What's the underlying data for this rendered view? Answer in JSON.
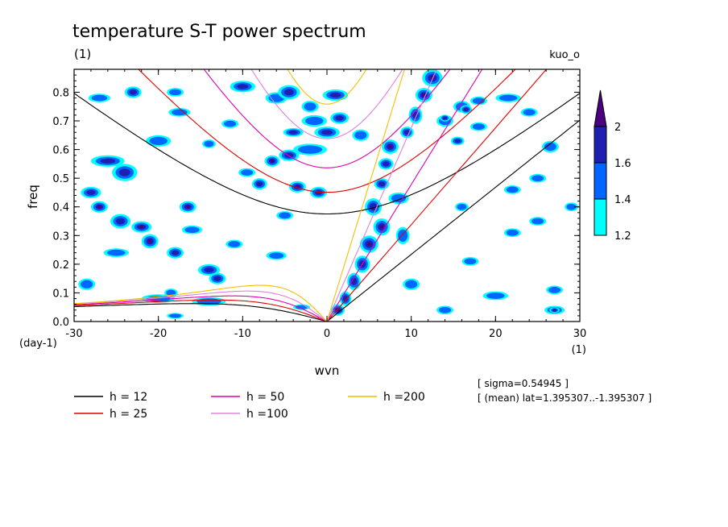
{
  "chart_data": {
    "type": "heatmap",
    "title": "temperature S-T power spectrum",
    "subtitle": "(1)",
    "top_right_label": "kuo_o",
    "xlabel": "wvn",
    "ylabel": "freq",
    "x_unit_label": "(1)",
    "y_unit_label": "(day-1)",
    "xlim": [
      -30,
      30
    ],
    "ylim": [
      0,
      0.88
    ],
    "x_ticks": [
      -30,
      -20,
      -10,
      0,
      10,
      20,
      30
    ],
    "x_tick_labels": [
      "-30",
      "-20",
      "-10",
      "0",
      "10",
      "20",
      "30"
    ],
    "y_ticks": [
      0,
      0.1,
      0.2,
      0.3,
      0.4,
      0.5,
      0.6,
      0.7,
      0.8
    ],
    "y_tick_labels": [
      "0.0",
      "0.1",
      "0.2",
      "0.3",
      "0.4",
      "0.5",
      "0.6",
      "0.7",
      "0.8"
    ],
    "colorbar": {
      "levels": [
        1.2,
        1.4,
        1.6,
        2
      ],
      "labels": [
        "1.2",
        "1.4",
        "1.6",
        "2"
      ],
      "colors": [
        "#00ffff",
        "#0066ff",
        "#2020b0",
        "#4b0082"
      ]
    },
    "dispersion_curves": [
      {
        "label": "h = 12",
        "h": 12,
        "color": "#000000"
      },
      {
        "label": "h = 25",
        "h": 25,
        "color": "#e00000"
      },
      {
        "label": "h = 50",
        "h": 50,
        "color": "#e000b0"
      },
      {
        "label": "h =100",
        "h": 100,
        "color": "#e080e0"
      },
      {
        "label": "h =200",
        "h": 200,
        "color": "#f0c000"
      }
    ],
    "blobs": [
      {
        "x": 12.5,
        "y": 0.85,
        "level": 3,
        "rx": 1.2,
        "ry": 0.03
      },
      {
        "x": 11.5,
        "y": 0.79,
        "level": 3,
        "rx": 1.0,
        "ry": 0.025
      },
      {
        "x": 10.5,
        "y": 0.72,
        "level": 2,
        "rx": 0.8,
        "ry": 0.03
      },
      {
        "x": 9.5,
        "y": 0.66,
        "level": 2,
        "rx": 0.8,
        "ry": 0.02
      },
      {
        "x": 7.5,
        "y": 0.61,
        "level": 3,
        "rx": 1.0,
        "ry": 0.025
      },
      {
        "x": 7.0,
        "y": 0.55,
        "level": 2,
        "rx": 0.9,
        "ry": 0.02
      },
      {
        "x": 6.5,
        "y": 0.48,
        "level": 2,
        "rx": 0.9,
        "ry": 0.02
      },
      {
        "x": 5.5,
        "y": 0.4,
        "level": 2,
        "rx": 1.0,
        "ry": 0.03
      },
      {
        "x": 6.5,
        "y": 0.33,
        "level": 3,
        "rx": 1.0,
        "ry": 0.03
      },
      {
        "x": 5.0,
        "y": 0.27,
        "level": 3,
        "rx": 1.1,
        "ry": 0.03
      },
      {
        "x": 4.2,
        "y": 0.2,
        "level": 2,
        "rx": 0.9,
        "ry": 0.03
      },
      {
        "x": 3.2,
        "y": 0.14,
        "level": 2,
        "rx": 0.8,
        "ry": 0.03
      },
      {
        "x": 2.2,
        "y": 0.08,
        "level": 2,
        "rx": 0.7,
        "ry": 0.025
      },
      {
        "x": 1.3,
        "y": 0.04,
        "level": 3,
        "rx": 0.8,
        "ry": 0.02
      },
      {
        "x": 8.5,
        "y": 0.43,
        "level": 1,
        "rx": 1.2,
        "ry": 0.02
      },
      {
        "x": 9.0,
        "y": 0.3,
        "level": 1,
        "rx": 0.8,
        "ry": 0.03
      },
      {
        "x": -10.0,
        "y": 0.82,
        "level": 2,
        "rx": 1.5,
        "ry": 0.02
      },
      {
        "x": -6.0,
        "y": 0.78,
        "level": 1,
        "rx": 1.3,
        "ry": 0.02
      },
      {
        "x": -4.5,
        "y": 0.8,
        "level": 2,
        "rx": 1.3,
        "ry": 0.025
      },
      {
        "x": -2.0,
        "y": 0.75,
        "level": 1,
        "rx": 1.0,
        "ry": 0.02
      },
      {
        "x": 1.0,
        "y": 0.79,
        "level": 2,
        "rx": 1.5,
        "ry": 0.02
      },
      {
        "x": 1.5,
        "y": 0.71,
        "level": 2,
        "rx": 1.1,
        "ry": 0.02
      },
      {
        "x": -1.5,
        "y": 0.7,
        "level": 1,
        "rx": 1.5,
        "ry": 0.02
      },
      {
        "x": -4.0,
        "y": 0.66,
        "level": 2,
        "rx": 1.2,
        "ry": 0.015
      },
      {
        "x": 0.0,
        "y": 0.66,
        "level": 2,
        "rx": 1.5,
        "ry": 0.02
      },
      {
        "x": -2.0,
        "y": 0.6,
        "level": 1,
        "rx": 2.0,
        "ry": 0.02
      },
      {
        "x": -4.5,
        "y": 0.58,
        "level": 2,
        "rx": 1.2,
        "ry": 0.02
      },
      {
        "x": -6.5,
        "y": 0.56,
        "level": 3,
        "rx": 0.9,
        "ry": 0.02
      },
      {
        "x": 4.0,
        "y": 0.65,
        "level": 1,
        "rx": 1.0,
        "ry": 0.02
      },
      {
        "x": -26.0,
        "y": 0.56,
        "level": 2,
        "rx": 2.0,
        "ry": 0.02
      },
      {
        "x": -24.0,
        "y": 0.52,
        "level": 2,
        "rx": 1.5,
        "ry": 0.03
      },
      {
        "x": -28.0,
        "y": 0.45,
        "level": 2,
        "rx": 1.2,
        "ry": 0.02
      },
      {
        "x": -27.0,
        "y": 0.4,
        "level": 3,
        "rx": 1.0,
        "ry": 0.02
      },
      {
        "x": -24.5,
        "y": 0.35,
        "level": 2,
        "rx": 1.2,
        "ry": 0.025
      },
      {
        "x": -22.0,
        "y": 0.33,
        "level": 3,
        "rx": 1.2,
        "ry": 0.02
      },
      {
        "x": -21.0,
        "y": 0.28,
        "level": 3,
        "rx": 1.0,
        "ry": 0.025
      },
      {
        "x": -18.0,
        "y": 0.24,
        "level": 2,
        "rx": 1.0,
        "ry": 0.02
      },
      {
        "x": -16.5,
        "y": 0.4,
        "level": 3,
        "rx": 1.0,
        "ry": 0.02
      },
      {
        "x": -14.0,
        "y": 0.18,
        "level": 2,
        "rx": 1.3,
        "ry": 0.02
      },
      {
        "x": -13.0,
        "y": 0.15,
        "level": 2,
        "rx": 1.0,
        "ry": 0.02
      },
      {
        "x": -8.0,
        "y": 0.48,
        "level": 2,
        "rx": 0.9,
        "ry": 0.02
      },
      {
        "x": -3.5,
        "y": 0.47,
        "level": 3,
        "rx": 1.0,
        "ry": 0.02
      },
      {
        "x": -1.0,
        "y": 0.45,
        "level": 2,
        "rx": 1.0,
        "ry": 0.02
      },
      {
        "x": -20.0,
        "y": 0.63,
        "level": 1,
        "rx": 1.5,
        "ry": 0.02
      },
      {
        "x": -17.5,
        "y": 0.73,
        "level": 1,
        "rx": 1.3,
        "ry": 0.015
      },
      {
        "x": -23.0,
        "y": 0.8,
        "level": 2,
        "rx": 1.0,
        "ry": 0.02
      },
      {
        "x": -27.0,
        "y": 0.78,
        "level": 1,
        "rx": 1.3,
        "ry": 0.015
      },
      {
        "x": -18.0,
        "y": 0.8,
        "level": 1,
        "rx": 1.0,
        "ry": 0.015
      },
      {
        "x": -11.5,
        "y": 0.69,
        "level": 1,
        "rx": 1.0,
        "ry": 0.015
      },
      {
        "x": -9.5,
        "y": 0.52,
        "level": 1,
        "rx": 1.0,
        "ry": 0.015
      },
      {
        "x": -14.0,
        "y": 0.62,
        "level": 1,
        "rx": 0.8,
        "ry": 0.015
      },
      {
        "x": -5.0,
        "y": 0.37,
        "level": 1,
        "rx": 1.0,
        "ry": 0.015
      },
      {
        "x": -16.0,
        "y": 0.32,
        "level": 1,
        "rx": 1.2,
        "ry": 0.015
      },
      {
        "x": -11.0,
        "y": 0.27,
        "level": 1,
        "rx": 1.0,
        "ry": 0.015
      },
      {
        "x": -6.0,
        "y": 0.23,
        "level": 1,
        "rx": 1.2,
        "ry": 0.015
      },
      {
        "x": -25.0,
        "y": 0.24,
        "level": 1,
        "rx": 1.5,
        "ry": 0.015
      },
      {
        "x": -28.5,
        "y": 0.13,
        "level": 1,
        "rx": 1.0,
        "ry": 0.02
      },
      {
        "x": -20.0,
        "y": 0.08,
        "level": 1,
        "rx": 2.0,
        "ry": 0.015
      },
      {
        "x": -14.0,
        "y": 0.07,
        "level": 1,
        "rx": 2.0,
        "ry": 0.015
      },
      {
        "x": -18.5,
        "y": 0.1,
        "level": 1,
        "rx": 0.8,
        "ry": 0.015
      },
      {
        "x": -3.0,
        "y": 0.05,
        "level": 1,
        "rx": 1.0,
        "ry": 0.01
      },
      {
        "x": -18.0,
        "y": 0.02,
        "level": 1,
        "rx": 1.0,
        "ry": 0.01
      },
      {
        "x": 14.0,
        "y": 0.7,
        "level": 1,
        "rx": 1.0,
        "ry": 0.02
      },
      {
        "x": 16.0,
        "y": 0.75,
        "level": 1,
        "rx": 1.0,
        "ry": 0.02
      },
      {
        "x": 18.0,
        "y": 0.68,
        "level": 1,
        "rx": 1.0,
        "ry": 0.015
      },
      {
        "x": 18.0,
        "y": 0.77,
        "level": 1,
        "rx": 1.0,
        "ry": 0.015
      },
      {
        "x": 21.5,
        "y": 0.78,
        "level": 1,
        "rx": 1.5,
        "ry": 0.015
      },
      {
        "x": 24.0,
        "y": 0.73,
        "level": 1,
        "rx": 1.0,
        "ry": 0.015
      },
      {
        "x": 26.5,
        "y": 0.61,
        "level": 1,
        "rx": 1.0,
        "ry": 0.02
      },
      {
        "x": 25.0,
        "y": 0.5,
        "level": 1,
        "rx": 1.0,
        "ry": 0.015
      },
      {
        "x": 22.0,
        "y": 0.46,
        "level": 1,
        "rx": 1.0,
        "ry": 0.015
      },
      {
        "x": 25.0,
        "y": 0.35,
        "level": 1,
        "rx": 1.0,
        "ry": 0.015
      },
      {
        "x": 22.0,
        "y": 0.31,
        "level": 1,
        "rx": 1.0,
        "ry": 0.015
      },
      {
        "x": 17.0,
        "y": 0.21,
        "level": 1,
        "rx": 1.0,
        "ry": 0.015
      },
      {
        "x": 20.0,
        "y": 0.09,
        "level": 1,
        "rx": 1.5,
        "ry": 0.015
      },
      {
        "x": 27.0,
        "y": 0.11,
        "level": 1,
        "rx": 1.0,
        "ry": 0.015
      },
      {
        "x": 29.0,
        "y": 0.4,
        "level": 1,
        "rx": 0.8,
        "ry": 0.015
      },
      {
        "x": 16.0,
        "y": 0.4,
        "level": 1,
        "rx": 0.8,
        "ry": 0.015
      },
      {
        "x": 10.0,
        "y": 0.13,
        "level": 1,
        "rx": 1.0,
        "ry": 0.02
      },
      {
        "x": 14.0,
        "y": 0.04,
        "level": 1,
        "rx": 1.0,
        "ry": 0.015
      },
      {
        "x": 27.0,
        "y": 0.04,
        "level": 1,
        "rx": 1.2,
        "ry": 0.015
      },
      {
        "x": 27.0,
        "y": 0.04,
        "level": 2,
        "rx": 0.6,
        "ry": 0.01
      },
      {
        "x": 15.5,
        "y": 0.63,
        "level": 2,
        "rx": 0.8,
        "ry": 0.015
      },
      {
        "x": 16.5,
        "y": 0.74,
        "level": 2,
        "rx": 0.7,
        "ry": 0.015
      },
      {
        "x": 14.0,
        "y": 0.71,
        "level": 2,
        "rx": 0.6,
        "ry": 0.012
      }
    ]
  },
  "annotations": {
    "sigma": "[ sigma=0.54945 ]",
    "mean": "[ (mean) lat=1.395307..-1.395307 ]"
  }
}
